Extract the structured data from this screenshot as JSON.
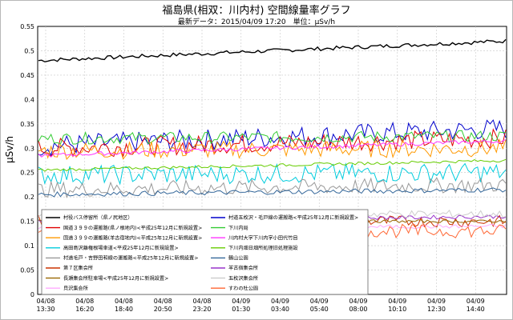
{
  "chart_data": {
    "type": "line",
    "title": "福島県(相双：川内村) 空間線量率グラフ",
    "subtitle": "最新データ：2015/04/09 17:20　単位：μSv/h",
    "ylabel": "μSv/h",
    "ylim": [
      0,
      0.55
    ],
    "yticks": [
      "0",
      "0.05",
      "0.1",
      "0.15",
      "0.2",
      "0.25",
      "0.3",
      "0.35",
      "0.4",
      "0.45",
      "0.5",
      "0.55"
    ],
    "xticks": [
      {
        "date": "04/08",
        "time": "13:30"
      },
      {
        "date": "04/08",
        "time": "16:20"
      },
      {
        "date": "04/08",
        "time": "18:40"
      },
      {
        "date": "04/08",
        "time": "20:50"
      },
      {
        "date": "04/08",
        "time": "23:20"
      },
      {
        "date": "04/09",
        "time": "01:30"
      },
      {
        "date": "04/09",
        "time": "03:40"
      },
      {
        "date": "04/09",
        "time": "05:40"
      },
      {
        "date": "04/09",
        "time": "08:00"
      },
      {
        "date": "04/09",
        "time": "10:10"
      },
      {
        "date": "04/09",
        "time": "12:30"
      },
      {
        "date": "04/09",
        "time": "14:40"
      }
    ],
    "grid": true,
    "legend_position": "lower-left",
    "series": [
      {
        "name": "村役バス停留所（県ノ尻地区）",
        "color": "#000000",
        "start": 0.48,
        "end": 0.52,
        "noise": 0.004
      },
      {
        "name": "村道五枚沢・毛戸線の運搬路<平成25年12月に新規設置>",
        "color": "#0000cc",
        "start": 0.305,
        "end": 0.34,
        "noise": 0.022
      },
      {
        "name": "国道３９９の運搬路(県ノ根地内)<平成25年12月に新規設置>",
        "color": "#e00000",
        "start": 0.3,
        "end": 0.32,
        "noise": 0.02
      },
      {
        "name": "下川内局",
        "color": "#33cc33",
        "start": 0.32,
        "end": 0.325,
        "noise": 0.012
      },
      {
        "name": "国道３９９の運搬路(羊古宿地内)<平成25年12月に新規設置>",
        "color": "#ff9900",
        "start": 0.295,
        "end": 0.3,
        "noise": 0.018
      },
      {
        "name": "川内村大字下川内字小田代竹目",
        "color": "#ff33ff",
        "start": 0.285,
        "end": 0.315,
        "noise": 0.004
      },
      {
        "name": "高田島沢離権根場車道<平成25年12月に新規設置>",
        "color": "#00ccdd",
        "start": 0.245,
        "end": 0.25,
        "noise": 0.02
      },
      {
        "name": "下川内畑日畑所処理旧処理施設",
        "color": "#66cc00",
        "start": 0.255,
        "end": 0.275,
        "noise": 0.003
      },
      {
        "name": "村道毛戸・吉野田和線の運搬路<平成25年12月に新規設置>",
        "color": "#999999",
        "start": 0.215,
        "end": 0.225,
        "noise": 0.016
      },
      {
        "name": "鶴山公園",
        "color": "#336699",
        "start": 0.205,
        "end": 0.215,
        "noise": 0.005
      },
      {
        "name": "第７区集会所",
        "color": "#cc3300",
        "start": 0.15,
        "end": 0.15,
        "noise": 0.012
      },
      {
        "name": "羊古宿集会所",
        "color": "#9933cc",
        "start": 0.15,
        "end": 0.16,
        "noise": 0.004
      },
      {
        "name": "長瀬集会所駐車場<平成25年12月に新規設置>",
        "color": "#996600",
        "start": 0.15,
        "end": 0.15,
        "noise": 0.003
      },
      {
        "name": "五枚沢集会所",
        "color": "#cccccc",
        "start": 0.165,
        "end": 0.165,
        "noise": 0.008
      },
      {
        "name": "貝沢集会所",
        "color": "#ffaaff",
        "start": 0.135,
        "end": 0.14,
        "noise": 0.004
      },
      {
        "name": "すわの杜公園",
        "color": "#ff6633",
        "start": 0.13,
        "end": 0.13,
        "noise": 0.014
      }
    ]
  }
}
